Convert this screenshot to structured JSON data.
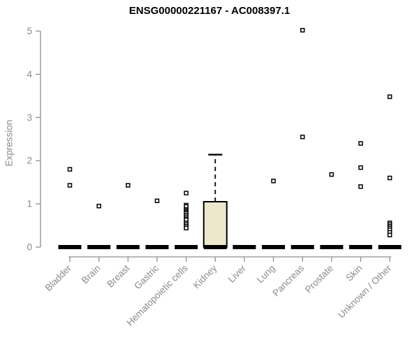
{
  "chart_data": {
    "type": "boxplot",
    "title": "ENSG00000221167 - AC008397.1",
    "ylabel": "Expression",
    "xlabel": "",
    "ylim": [
      0,
      5
    ],
    "yticks": [
      0,
      1,
      2,
      3,
      4,
      5
    ],
    "grid": false,
    "legend": null,
    "outlier_marker": "open-square",
    "x_label_rotation_deg": 45,
    "colors": {
      "box_fill": "#EDE8CD",
      "box_stroke": "#000000",
      "median": "#000000",
      "outlier": "#000000",
      "axis_text": "#8b8b8b",
      "axis_line": "#8f8f8f",
      "title": "#000000",
      "background": "#ffffff"
    },
    "categories": [
      "Bladder",
      "Brain",
      "Breast",
      "Gastric",
      "Hematopoietic cells",
      "Kidney",
      "Liver",
      "Lung",
      "Pancreas",
      "Prostate",
      "Skin",
      "Unknown / Other"
    ],
    "boxes": [
      {
        "category": "Bladder",
        "q1": 0,
        "median": 0,
        "q3": 0,
        "whisker_low": 0,
        "whisker_high": 0,
        "outliers": [
          1.8,
          1.43
        ]
      },
      {
        "category": "Brain",
        "q1": 0,
        "median": 0,
        "q3": 0,
        "whisker_low": 0,
        "whisker_high": 0,
        "outliers": [
          0.95
        ]
      },
      {
        "category": "Breast",
        "q1": 0,
        "median": 0,
        "q3": 0,
        "whisker_low": 0,
        "whisker_high": 0,
        "outliers": [
          1.43
        ]
      },
      {
        "category": "Gastric",
        "q1": 0,
        "median": 0,
        "q3": 0,
        "whisker_low": 0,
        "whisker_high": 0,
        "outliers": [
          1.07
        ]
      },
      {
        "category": "Hematopoietic cells",
        "q1": 0,
        "median": 0,
        "q3": 0,
        "whisker_low": 0,
        "whisker_high": 0,
        "outliers": [
          1.25,
          0.97,
          0.94,
          0.87,
          0.84,
          0.81,
          0.78,
          0.74,
          0.7,
          0.66,
          0.63,
          0.56,
          0.52,
          0.48,
          0.44
        ]
      },
      {
        "category": "Kidney",
        "q1": 0,
        "median": 0,
        "q3": 1.05,
        "whisker_low": 0,
        "whisker_high": 2.14,
        "outliers": []
      },
      {
        "category": "Liver",
        "q1": 0,
        "median": 0,
        "q3": 0,
        "whisker_low": 0,
        "whisker_high": 0,
        "outliers": []
      },
      {
        "category": "Lung",
        "q1": 0,
        "median": 0,
        "q3": 0,
        "whisker_low": 0,
        "whisker_high": 0,
        "outliers": [
          1.53
        ]
      },
      {
        "category": "Pancreas",
        "q1": 0,
        "median": 0,
        "q3": 0,
        "whisker_low": 0,
        "whisker_high": 0,
        "outliers": [
          5.02,
          2.55
        ]
      },
      {
        "category": "Prostate",
        "q1": 0,
        "median": 0,
        "q3": 0,
        "whisker_low": 0,
        "whisker_high": 0,
        "outliers": [
          1.68
        ]
      },
      {
        "category": "Skin",
        "q1": 0,
        "median": 0,
        "q3": 0,
        "whisker_low": 0,
        "whisker_high": 0,
        "outliers": [
          2.4,
          1.84,
          1.4
        ]
      },
      {
        "category": "Unknown / Other",
        "q1": 0,
        "median": 0,
        "q3": 0,
        "whisker_low": 0,
        "whisker_high": 0,
        "outliers": [
          3.48,
          1.6,
          0.56,
          0.52,
          0.48,
          0.44,
          0.4,
          0.34,
          0.28
        ]
      }
    ]
  }
}
